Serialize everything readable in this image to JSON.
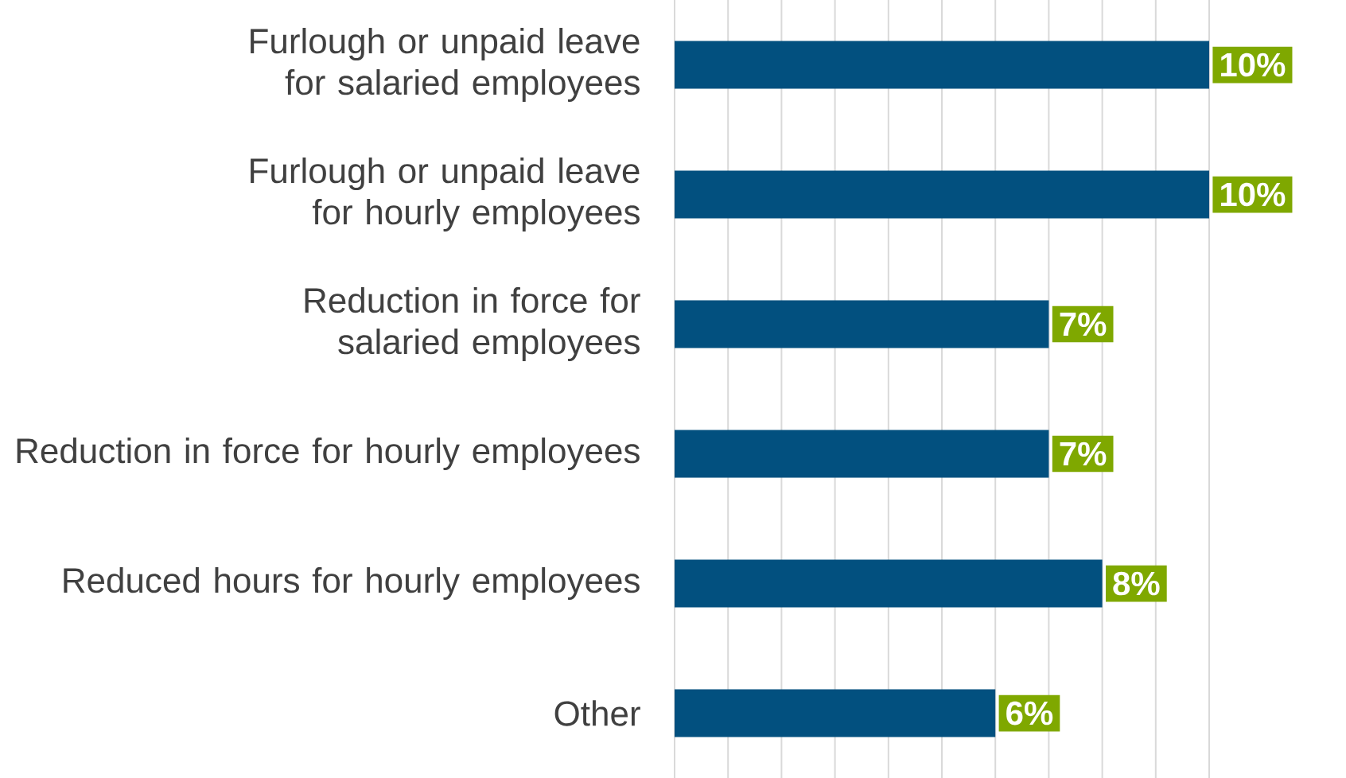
{
  "chart_data": {
    "type": "bar",
    "orientation": "horizontal",
    "categories": [
      "Furlough or unpaid leave for salaried employees",
      "Furlough or unpaid leave for hourly employees",
      "Reduction in force for salaried employees",
      "Reduction in force for hourly employees",
      "Reduced hours for hourly employees",
      "Other"
    ],
    "values": [
      10,
      10,
      7,
      7,
      8,
      6
    ],
    "value_labels": [
      "10%",
      "10%",
      "7%",
      "7%",
      "8%",
      "6%"
    ],
    "color": "#02507f",
    "grid": "x",
    "tick_labels": "y"
  }
}
